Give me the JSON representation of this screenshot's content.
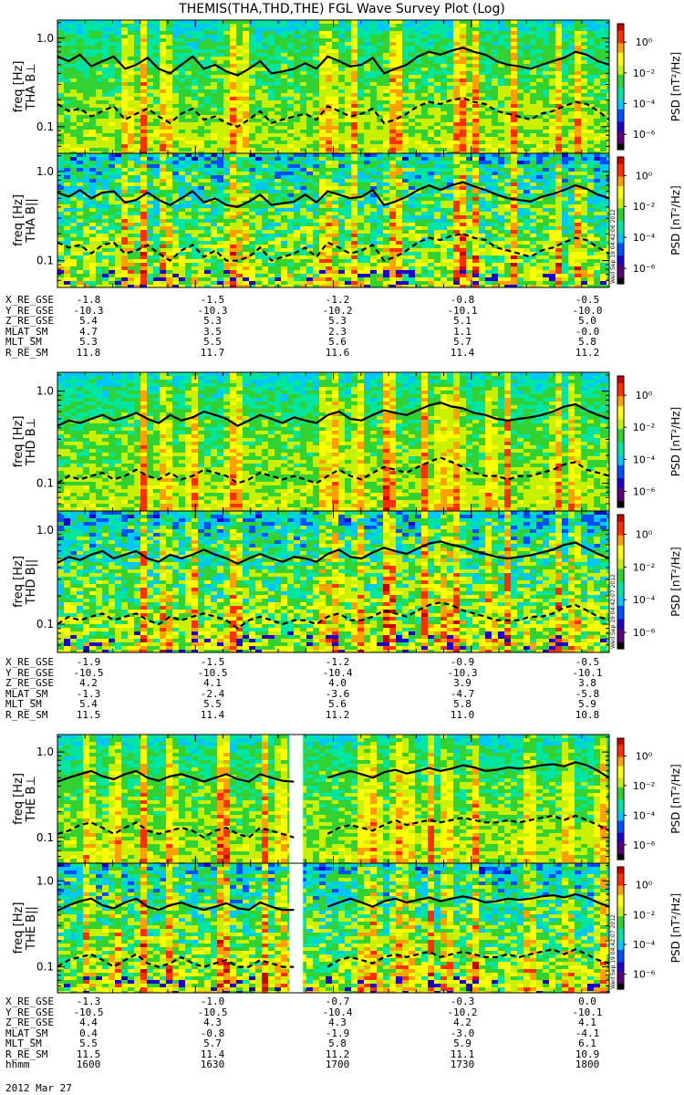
{
  "title": "THEMIS(THA,THD,THE) FGL Wave Survey Plot (Log)",
  "date_label": "2012 Mar 27",
  "colorbar": {
    "label": "PSD [nT²/Hz]",
    "ticks": [
      "10⁰",
      "10⁻²",
      "10⁻⁴",
      "10⁻⁶"
    ],
    "tick_exponents": [
      0,
      -2,
      -4,
      -6
    ],
    "range_exponent": [
      -7,
      1.2
    ],
    "colors": [
      "#000000",
      "#5a0078",
      "#1e00c8",
      "#0050ff",
      "#00c8ff",
      "#00e6a0",
      "#32d232",
      "#c8f000",
      "#ffff00",
      "#ffa000",
      "#ff3000",
      "#c80000"
    ]
  },
  "stamps": {
    "tha": "Wed Sep 19 04:42:06 2012",
    "thd": "Wed Sep 19 04:42:07 2012",
    "the": "Wed Sep 19 04:42:07 2012"
  },
  "chart_data": [
    {
      "type": "heatmap",
      "probe": "THA",
      "panels": [
        {
          "ylabel_component": "THA B⊥",
          "ylabel": "freq [Hz]",
          "yticks": [
            "1.0",
            "0.1"
          ],
          "ytick_values": [
            1.0,
            0.1
          ],
          "ylim": [
            0.05,
            1.6
          ],
          "yscale": "log",
          "line_solid_hz": [
            0.62,
            0.55,
            0.65,
            0.48,
            0.55,
            0.62,
            0.45,
            0.5,
            0.6,
            0.45,
            0.4,
            0.5,
            0.62,
            0.45,
            0.5,
            0.42,
            0.38,
            0.45,
            0.55,
            0.4,
            0.42,
            0.45,
            0.52,
            0.45,
            0.62,
            0.55,
            0.48,
            0.5,
            0.6,
            0.4,
            0.45,
            0.5,
            0.62,
            0.7,
            0.65,
            0.72,
            0.78,
            0.7,
            0.65,
            0.55,
            0.5,
            0.48,
            0.45,
            0.5,
            0.55,
            0.6,
            0.7,
            0.65,
            0.55,
            0.5
          ],
          "line_dashed_hz": [
            0.18,
            0.15,
            0.16,
            0.13,
            0.15,
            0.17,
            0.12,
            0.14,
            0.16,
            0.13,
            0.11,
            0.14,
            0.16,
            0.12,
            0.13,
            0.11,
            0.1,
            0.12,
            0.15,
            0.11,
            0.12,
            0.13,
            0.14,
            0.12,
            0.17,
            0.15,
            0.13,
            0.14,
            0.16,
            0.11,
            0.12,
            0.14,
            0.17,
            0.19,
            0.18,
            0.2,
            0.21,
            0.19,
            0.18,
            0.15,
            0.14,
            0.13,
            0.12,
            0.14,
            0.15,
            0.17,
            0.19,
            0.18,
            0.15,
            0.12
          ]
        },
        {
          "ylabel_component": "THA B||",
          "ylabel": "freq [Hz]",
          "yticks": [
            "1.0",
            "0.1"
          ],
          "ytick_values": [
            1.0,
            0.1
          ],
          "ylim": [
            0.05,
            1.6
          ],
          "yscale": "log",
          "line_solid_hz": [
            0.58,
            0.52,
            0.62,
            0.5,
            0.58,
            0.6,
            0.45,
            0.48,
            0.58,
            0.48,
            0.42,
            0.5,
            0.6,
            0.45,
            0.5,
            0.42,
            0.4,
            0.46,
            0.55,
            0.42,
            0.44,
            0.46,
            0.55,
            0.45,
            0.6,
            0.55,
            0.5,
            0.52,
            0.62,
            0.42,
            0.46,
            0.52,
            0.62,
            0.7,
            0.62,
            0.7,
            0.76,
            0.68,
            0.62,
            0.55,
            0.5,
            0.48,
            0.46,
            0.52,
            0.56,
            0.62,
            0.7,
            0.64,
            0.55,
            0.5
          ],
          "line_dashed_hz": [
            0.16,
            0.14,
            0.15,
            0.12,
            0.15,
            0.16,
            0.12,
            0.13,
            0.15,
            0.12,
            0.1,
            0.13,
            0.15,
            0.11,
            0.13,
            0.1,
            0.1,
            0.11,
            0.14,
            0.1,
            0.11,
            0.12,
            0.14,
            0.11,
            0.16,
            0.14,
            0.12,
            0.13,
            0.15,
            0.1,
            0.11,
            0.13,
            0.16,
            0.18,
            0.17,
            0.19,
            0.2,
            0.18,
            0.17,
            0.14,
            0.13,
            0.12,
            0.11,
            0.13,
            0.14,
            0.16,
            0.18,
            0.17,
            0.14,
            0.12
          ]
        }
      ],
      "ephemeris": {
        "labels": [
          "X_RE_GSE",
          "Y_RE_GSE",
          "Z_RE_GSE",
          "MLAT_SM",
          "MLT_SM",
          "R_RE_SM"
        ],
        "values": [
          [
            "-1.8",
            "-1.5",
            "-1.2",
            "-0.8",
            "-0.5"
          ],
          [
            "-10.3",
            "-10.3",
            "-10.2",
            "-10.1",
            "-10.0"
          ],
          [
            "5.4",
            "5.3",
            "5.3",
            "5.1",
            "5.0"
          ],
          [
            "4.7",
            "3.5",
            "2.3",
            "1.1",
            "-0.0"
          ],
          [
            "5.3",
            "5.5",
            "5.6",
            "5.7",
            "5.8"
          ],
          [
            "11.8",
            "11.7",
            "11.6",
            "11.4",
            "11.2"
          ]
        ]
      }
    },
    {
      "type": "heatmap",
      "probe": "THD",
      "panels": [
        {
          "ylabel_component": "THD B⊥",
          "ylabel": "freq [Hz]",
          "yticks": [
            "1.0",
            "0.1"
          ],
          "ytick_values": [
            1.0,
            0.1
          ],
          "ylim": [
            0.05,
            1.6
          ],
          "yscale": "log",
          "line_solid_hz": [
            0.42,
            0.48,
            0.45,
            0.5,
            0.55,
            0.48,
            0.52,
            0.58,
            0.5,
            0.45,
            0.55,
            0.48,
            0.52,
            0.6,
            0.55,
            0.5,
            0.42,
            0.48,
            0.55,
            0.5,
            0.45,
            0.52,
            0.48,
            0.45,
            0.55,
            0.6,
            0.5,
            0.48,
            0.55,
            0.62,
            0.58,
            0.55,
            0.62,
            0.7,
            0.75,
            0.68,
            0.65,
            0.58,
            0.55,
            0.5,
            0.48,
            0.5,
            0.52,
            0.55,
            0.6,
            0.68,
            0.72,
            0.62,
            0.55,
            0.5
          ],
          "line_dashed_hz": [
            0.1,
            0.12,
            0.11,
            0.12,
            0.13,
            0.11,
            0.12,
            0.14,
            0.12,
            0.11,
            0.13,
            0.11,
            0.12,
            0.14,
            0.13,
            0.12,
            0.1,
            0.11,
            0.13,
            0.12,
            0.11,
            0.12,
            0.11,
            0.1,
            0.12,
            0.14,
            0.12,
            0.11,
            0.13,
            0.15,
            0.14,
            0.13,
            0.15,
            0.17,
            0.19,
            0.17,
            0.15,
            0.13,
            0.12,
            0.12,
            0.11,
            0.12,
            0.12,
            0.13,
            0.14,
            0.16,
            0.17,
            0.14,
            0.13,
            0.12
          ]
        },
        {
          "ylabel_component": "THD B||",
          "ylabel": "freq [Hz]",
          "yticks": [
            "1.0",
            "0.1"
          ],
          "ytick_values": [
            1.0,
            0.1
          ],
          "ylim": [
            0.05,
            1.6
          ],
          "yscale": "log",
          "line_solid_hz": [
            0.45,
            0.52,
            0.48,
            0.55,
            0.6,
            0.5,
            0.55,
            0.6,
            0.5,
            0.46,
            0.55,
            0.5,
            0.55,
            0.62,
            0.55,
            0.5,
            0.44,
            0.5,
            0.56,
            0.5,
            0.46,
            0.52,
            0.5,
            0.46,
            0.56,
            0.62,
            0.52,
            0.5,
            0.58,
            0.65,
            0.6,
            0.56,
            0.64,
            0.72,
            0.76,
            0.7,
            0.66,
            0.6,
            0.56,
            0.52,
            0.5,
            0.52,
            0.54,
            0.58,
            0.62,
            0.7,
            0.74,
            0.64,
            0.56,
            0.5
          ],
          "line_dashed_hz": [
            0.1,
            0.12,
            0.11,
            0.12,
            0.13,
            0.11,
            0.12,
            0.13,
            0.11,
            0.1,
            0.12,
            0.11,
            0.12,
            0.13,
            0.12,
            0.11,
            0.09,
            0.11,
            0.12,
            0.11,
            0.1,
            0.11,
            0.11,
            0.1,
            0.12,
            0.13,
            0.11,
            0.11,
            0.12,
            0.14,
            0.13,
            0.12,
            0.14,
            0.16,
            0.17,
            0.16,
            0.14,
            0.13,
            0.12,
            0.11,
            0.11,
            0.11,
            0.12,
            0.12,
            0.13,
            0.15,
            0.16,
            0.14,
            0.12,
            0.11
          ]
        }
      ],
      "ephemeris": {
        "labels": [
          "X_RE_GSE",
          "Y_RE_GSE",
          "Z_RE_GSE",
          "MLAT_SM",
          "MLT_SM",
          "R_RE_SM"
        ],
        "values": [
          [
            "-1.9",
            "-1.5",
            "-1.2",
            "-0.9",
            "-0.5"
          ],
          [
            "-10.5",
            "-10.5",
            "-10.4",
            "-10.3",
            "-10.1"
          ],
          [
            "4.2",
            "4.1",
            "4.0",
            "3.9",
            "3.8"
          ],
          [
            "-1.3",
            "-2.4",
            "-3.6",
            "-4.7",
            "-5.8"
          ],
          [
            "5.4",
            "5.5",
            "5.6",
            "5.8",
            "5.9"
          ],
          [
            "11.5",
            "11.4",
            "11.2",
            "11.0",
            "10.8"
          ]
        ]
      }
    },
    {
      "type": "heatmap",
      "probe": "THE",
      "panels": [
        {
          "ylabel_component": "THE B⊥",
          "ylabel": "freq [Hz]",
          "yticks": [
            "1.0",
            "0.1"
          ],
          "ytick_values": [
            1.0,
            0.1
          ],
          "ylim": [
            0.05,
            1.6
          ],
          "yscale": "log",
          "line_solid_hz": [
            0.45,
            0.5,
            0.55,
            0.6,
            0.52,
            0.48,
            0.55,
            0.6,
            0.5,
            0.46,
            0.52,
            0.55,
            0.5,
            0.45,
            0.5,
            0.55,
            0.48,
            0.45,
            0.55,
            0.5,
            0.46,
            0.45,
            null,
            null,
            0.5,
            0.55,
            0.6,
            0.55,
            0.5,
            0.58,
            0.62,
            0.56,
            0.6,
            0.65,
            0.6,
            0.64,
            0.7,
            0.66,
            0.6,
            0.62,
            0.66,
            0.64,
            0.66,
            0.7,
            0.72,
            0.68,
            0.76,
            0.7,
            0.6,
            0.5
          ],
          "line_dashed_hz": [
            0.11,
            0.12,
            0.14,
            0.15,
            0.13,
            0.11,
            0.13,
            0.15,
            0.12,
            0.11,
            0.12,
            0.13,
            0.12,
            0.1,
            0.12,
            0.13,
            0.11,
            0.1,
            0.13,
            0.12,
            0.11,
            0.1,
            null,
            null,
            0.11,
            0.13,
            0.14,
            0.13,
            0.12,
            0.14,
            0.16,
            0.14,
            0.15,
            0.16,
            0.15,
            0.16,
            0.17,
            0.16,
            0.15,
            0.15,
            0.16,
            0.15,
            0.16,
            0.17,
            0.18,
            0.16,
            0.18,
            0.16,
            0.14,
            0.12
          ]
        },
        {
          "ylabel_component": "THE B||",
          "ylabel": "freq [Hz]",
          "yticks": [
            "1.0",
            "0.1"
          ],
          "ytick_values": [
            1.0,
            0.1
          ],
          "ylim": [
            0.05,
            1.6
          ],
          "yscale": "log",
          "line_solid_hz": [
            0.45,
            0.52,
            0.58,
            0.62,
            0.52,
            0.48,
            0.56,
            0.62,
            0.5,
            0.46,
            0.52,
            0.56,
            0.5,
            0.46,
            0.5,
            0.55,
            0.48,
            0.46,
            0.56,
            0.5,
            0.46,
            0.46,
            null,
            null,
            0.5,
            0.56,
            0.62,
            0.56,
            0.5,
            0.58,
            0.62,
            0.56,
            0.6,
            0.64,
            0.58,
            0.62,
            0.66,
            0.62,
            0.56,
            0.58,
            0.62,
            0.6,
            0.62,
            0.66,
            0.68,
            0.64,
            0.7,
            0.64,
            0.56,
            0.5
          ],
          "line_dashed_hz": [
            0.1,
            0.12,
            0.13,
            0.14,
            0.12,
            0.1,
            0.12,
            0.14,
            0.11,
            0.1,
            0.11,
            0.13,
            0.11,
            0.1,
            0.11,
            0.12,
            0.1,
            0.1,
            0.12,
            0.11,
            0.1,
            0.1,
            null,
            null,
            0.1,
            0.12,
            0.13,
            0.12,
            0.11,
            0.13,
            0.14,
            0.13,
            0.14,
            0.15,
            0.13,
            0.14,
            0.15,
            0.14,
            0.13,
            0.13,
            0.14,
            0.13,
            0.14,
            0.15,
            0.16,
            0.14,
            0.16,
            0.14,
            0.12,
            0.11
          ]
        }
      ],
      "gap_time_fraction": [
        0.42,
        0.445
      ],
      "ephemeris": {
        "labels": [
          "X_RE_GSE",
          "Y_RE_GSE",
          "Z_RE_GSE",
          "MLAT_SM",
          "MLT_SM",
          "R_RE_SM",
          "hhmm"
        ],
        "values": [
          [
            "-1.3",
            "-1.0",
            "-0.7",
            "-0.3",
            "0.0"
          ],
          [
            "-10.5",
            "-10.5",
            "-10.4",
            "-10.2",
            "-10.1"
          ],
          [
            "4.4",
            "4.3",
            "4.3",
            "4.2",
            "4.1"
          ],
          [
            "0.4",
            "-0.8",
            "-1.9",
            "-3.0",
            "-4.1"
          ],
          [
            "5.5",
            "5.7",
            "5.8",
            "5.9",
            "6.1"
          ],
          [
            "11.5",
            "11.4",
            "11.2",
            "11.1",
            "10.9"
          ],
          [
            "1600",
            "1630",
            "1700",
            "1730",
            "1800"
          ]
        ]
      }
    }
  ]
}
